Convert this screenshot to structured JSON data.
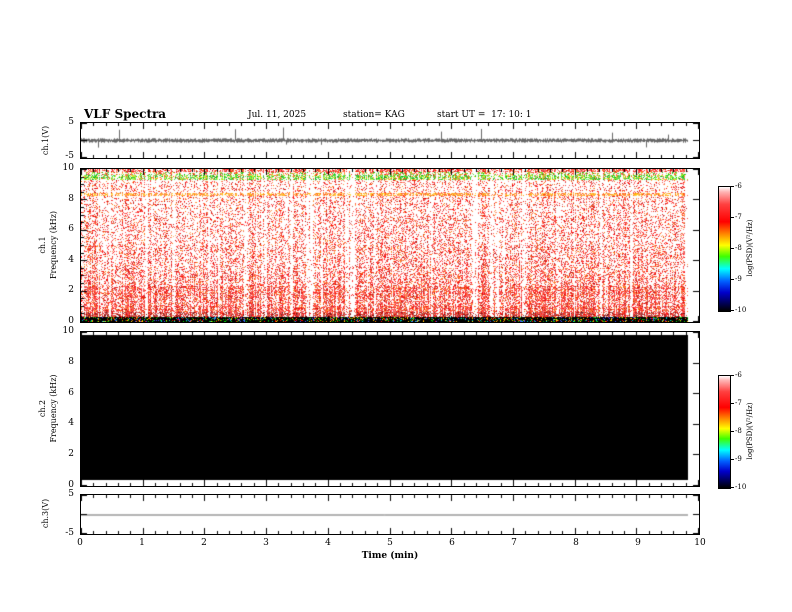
{
  "title": "VLF Spectra",
  "header": {
    "date": "Jul. 11, 2025",
    "station": "station= KAG",
    "start_ut": "start UT =  17: 10: 1"
  },
  "x_axis": {
    "label": "Time (min)",
    "ticks": [
      "0",
      "1",
      "2",
      "3",
      "4",
      "5",
      "6",
      "7",
      "8",
      "9",
      "10"
    ],
    "min": 0,
    "max": 10,
    "data_end_min": 9.83
  },
  "colorbar": {
    "label": "log(PSD)(V²/Hz)",
    "ticks": [
      "-6",
      "-7",
      "-8",
      "-9",
      "-10"
    ],
    "zlim": [
      -10,
      -6
    ],
    "top_to_bottom_colors": [
      "white",
      "red",
      "orange",
      "yellow",
      "green",
      "cyan",
      "blue",
      "black"
    ]
  },
  "panels": {
    "ch1v": {
      "label": "ch.1(V)",
      "ymax": "5",
      "ymin": "-5"
    },
    "ch1spec": {
      "label_ch": "ch.1",
      "label_axis": "Frequency (kHz)",
      "yticks": [
        "10",
        "8",
        "6",
        "4",
        "2",
        "0"
      ]
    },
    "ch2spec": {
      "label_ch": "ch.2",
      "label_axis": "Frequency (kHz)",
      "yticks": [
        "10",
        "8",
        "6",
        "4",
        "2",
        "0"
      ]
    },
    "ch3v": {
      "label": "ch.3(V)",
      "ymax": "5",
      "ymin": "-5"
    }
  },
  "chart_data": [
    {
      "panel": "ch.1(V)",
      "type": "line",
      "xlim": [
        0,
        10
      ],
      "ylim": [
        -5,
        5
      ],
      "baseline_V": 0,
      "noise_amplitude_V": 0.4,
      "spike_probability": 0.012,
      "spike_amplitude_V": 2.5,
      "description": "dense broadband noisy voltage trace centered on 0 V with frequent impulsive spikes up to about +/-3 V"
    },
    {
      "panel": "ch.1 spectrogram",
      "type": "heatmap",
      "xlabel": "Time (min)",
      "ylabel": "Frequency (kHz)",
      "xlim": [
        0,
        9.83
      ],
      "ylim": [
        0,
        10
      ],
      "zlabel": "log(PSD)(V²/Hz)",
      "zlim": [
        -10,
        -6
      ],
      "description": "red-dominated sferic/noise spectrogram with vertical streaking, strongest below ~2.5 kHz, an orange interference line near 8.3 kHz, a green band near 9.3-9.7 kHz and a black speckled band below 0.3 kHz",
      "bands": [
        {
          "f0": 0.0,
          "f1": 0.3,
          "density": 1.0,
          "palette": "speckle_on_black"
        },
        {
          "f0": 0.3,
          "f1": 0.6,
          "density": 0.92,
          "palette": "darkred"
        },
        {
          "f0": 0.6,
          "f1": 1.0,
          "density": 0.8,
          "palette": "red"
        },
        {
          "f0": 1.0,
          "f1": 1.45,
          "density": 0.62,
          "palette": "red"
        },
        {
          "f0": 1.45,
          "f1": 2.35,
          "density": 0.72,
          "palette": "red"
        },
        {
          "f0": 2.35,
          "f1": 3.3,
          "density": 0.5,
          "palette": "red"
        },
        {
          "f0": 3.3,
          "f1": 5.0,
          "density": 0.42,
          "palette": "red"
        },
        {
          "f0": 5.0,
          "f1": 7.0,
          "density": 0.34,
          "palette": "red"
        },
        {
          "f0": 7.0,
          "f1": 8.25,
          "density": 0.3,
          "palette": "red"
        },
        {
          "f0": 8.25,
          "f1": 8.45,
          "density": 0.85,
          "palette": "orange"
        },
        {
          "f0": 8.45,
          "f1": 9.3,
          "density": 0.26,
          "palette": "red"
        },
        {
          "f0": 9.3,
          "f1": 9.65,
          "density": 0.8,
          "palette": "green"
        },
        {
          "f0": 9.65,
          "f1": 9.82,
          "density": 0.55,
          "palette": "greenred"
        },
        {
          "f0": 9.82,
          "f1": 10.0,
          "density": 0.75,
          "palette": "red"
        }
      ]
    },
    {
      "panel": "ch.2 spectrogram",
      "type": "heatmap",
      "xlabel": "Time (min)",
      "ylabel": "Frequency (kHz)",
      "xlim": [
        0,
        9.83
      ],
      "ylim": [
        0.3,
        9.8
      ],
      "zlabel": "log(PSD)(V²/Hz)",
      "zlim": [
        -10,
        -6
      ],
      "fill_color": "#000000",
      "description": "uniform minimum PSD (~1e-10, solid black) across the whole record"
    },
    {
      "panel": "ch.3(V)",
      "type": "line",
      "xlim": [
        0,
        9.83
      ],
      "ylim": [
        -5,
        5
      ],
      "baseline_V": 0,
      "flat": true,
      "description": "flat line at 0 V for the full record"
    }
  ]
}
